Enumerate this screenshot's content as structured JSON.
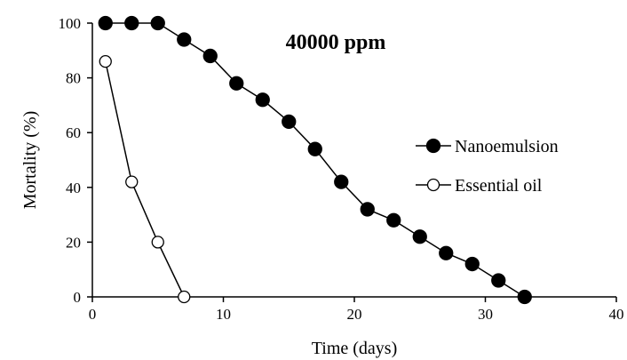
{
  "chart_data": {
    "type": "line",
    "xlabel": "Time (days)",
    "ylabel": "Mortality (%)",
    "xlim": [
      0,
      40
    ],
    "ylim": [
      0,
      100
    ],
    "xticks": [
      0,
      10,
      20,
      30,
      40
    ],
    "yticks": [
      0,
      20,
      40,
      60,
      80,
      100
    ],
    "grid": false,
    "legend_position": "right",
    "annotation": "40000 ppm",
    "series": [
      {
        "name": "Nanoemulsion",
        "marker": "filled-circle",
        "color": "#000000",
        "x": [
          1,
          3,
          5,
          7,
          9,
          11,
          13,
          15,
          17,
          19,
          21,
          23,
          25,
          27,
          29,
          31,
          33
        ],
        "y": [
          100,
          100,
          100,
          94,
          88,
          78,
          72,
          64,
          54,
          42,
          32,
          28,
          22,
          16,
          12,
          6,
          0
        ]
      },
      {
        "name": "Essential oil",
        "marker": "open-circle",
        "color": "#000000",
        "x": [
          1,
          3,
          5,
          7
        ],
        "y": [
          86,
          42,
          20,
          0
        ]
      }
    ]
  }
}
